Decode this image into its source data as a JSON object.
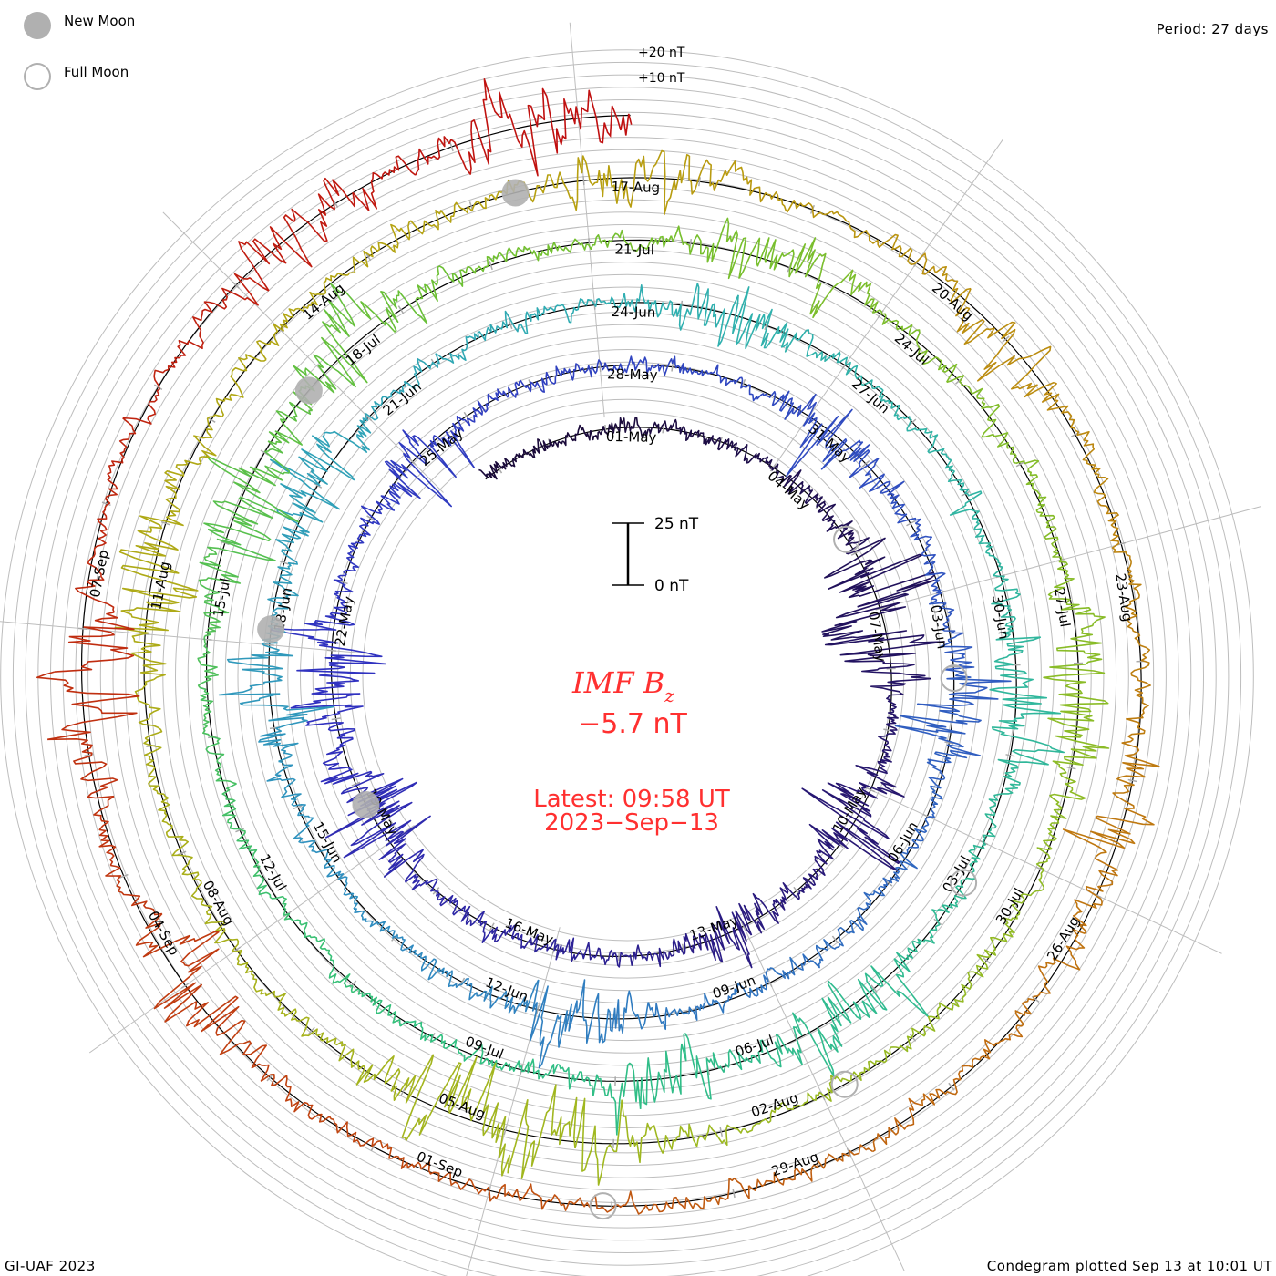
{
  "legend": {
    "new_moon": "New Moon",
    "full_moon": "Full Moon",
    "new_moon_color": "#b0b0b0",
    "full_moon_color": "#b0b0b0"
  },
  "period_label": "Period: 27 days",
  "footer_left": "GI-UAF 2023",
  "footer_right": "Condegram plotted Sep 13 at 10:01 UT",
  "center": {
    "title_main": "IMF B",
    "title_sub": "z",
    "value": "−5.7 nT",
    "latest": "Latest: 09:58 UT",
    "date": "2023−Sep−13"
  },
  "scale_bar": {
    "top_label": "25 nT",
    "bottom_label": "0 nT",
    "value_nT": 25
  },
  "outer_scale": {
    "plus10": "+10 nT",
    "plus20": "+20 nT"
  },
  "chart_data": {
    "type": "line",
    "subtype": "polar condegram (spiral)",
    "title": "IMF Bz",
    "units": "nT",
    "period_days": 27,
    "start_day_offset": -2.3,
    "end_day_offset": 135.415,
    "reference_date": "2023-05-01",
    "latest_value_nT": -5.7,
    "base_noise_nT": 2.4,
    "date_label_step_days": 3,
    "date_labels": [
      "01-May",
      "04-May",
      "07-May",
      "10-May",
      "13-May",
      "16-May",
      "19-May",
      "22-May",
      "25-May",
      "28-May",
      "31-May",
      "03-Jun",
      "06-Jun",
      "09-Jun",
      "12-Jun",
      "15-Jun",
      "18-Jun",
      "21-Jun",
      "24-Jun",
      "27-Jun",
      "30-Jun",
      "03-Jul",
      "06-Jul",
      "09-Jul",
      "12-Jul",
      "15-Jul",
      "18-Jul",
      "21-Jul",
      "24-Jul",
      "27-Jul",
      "30-Jul",
      "02-Aug",
      "05-Aug",
      "08-Aug",
      "11-Aug",
      "14-Aug",
      "17-Aug",
      "20-Aug",
      "23-Aug",
      "26-Aug",
      "29-Aug",
      "01-Sep",
      "04-Sep",
      "07-Sep"
    ],
    "disturbances": [
      {
        "day": 5.8,
        "amp": 14
      },
      {
        "day": 6.6,
        "amp": 8
      },
      {
        "day": 9.5,
        "amp": 12
      },
      {
        "day": 12.2,
        "amp": 8
      },
      {
        "day": 18.5,
        "amp": 12
      },
      {
        "day": 20.8,
        "amp": 10
      },
      {
        "day": 24,
        "amp": 6
      },
      {
        "day": 30.5,
        "amp": 7
      },
      {
        "day": 34.5,
        "amp": 8
      },
      {
        "day": 41.5,
        "amp": 10
      },
      {
        "day": 47.5,
        "amp": 9
      },
      {
        "day": 50,
        "amp": 7
      },
      {
        "day": 55.5,
        "amp": 7
      },
      {
        "day": 61.5,
        "amp": 7
      },
      {
        "day": 65.5,
        "amp": 8
      },
      {
        "day": 67.5,
        "amp": 8
      },
      {
        "day": 76.3,
        "amp": 10
      },
      {
        "day": 78.5,
        "amp": 8
      },
      {
        "day": 83,
        "amp": 7
      },
      {
        "day": 88.3,
        "amp": 9
      },
      {
        "day": 95.5,
        "amp": 10
      },
      {
        "day": 96.5,
        "amp": 9
      },
      {
        "day": 102.5,
        "amp": 10
      },
      {
        "day": 108.5,
        "amp": 7
      },
      {
        "day": 112,
        "amp": 6
      },
      {
        "day": 116.5,
        "amp": 6
      },
      {
        "day": 126,
        "amp": 8
      },
      {
        "day": 128.5,
        "amp": 9
      },
      {
        "day": 132.5,
        "amp": 8
      },
      {
        "day": 134.8,
        "amp": 10
      }
    ],
    "new_moons_day_offset": [
      18.66,
      48.19,
      77.77,
      107.4
    ],
    "full_moons_day_offset": [
      4.73,
      34.15,
      63.49,
      92.77,
      122.07
    ],
    "color_stops": [
      {
        "day": 0,
        "color": "#1a0a3a"
      },
      {
        "day": 12,
        "color": "#2a1a80"
      },
      {
        "day": 20,
        "color": "#3030c0"
      },
      {
        "day": 32,
        "color": "#3050c0"
      },
      {
        "day": 45,
        "color": "#3090c0"
      },
      {
        "day": 55,
        "color": "#30b0b0"
      },
      {
        "day": 70,
        "color": "#30c080"
      },
      {
        "day": 80,
        "color": "#70c030"
      },
      {
        "day": 95,
        "color": "#a0b820"
      },
      {
        "day": 108,
        "color": "#b8a010"
      },
      {
        "day": 118,
        "color": "#c07010"
      },
      {
        "day": 125,
        "color": "#c04010"
      },
      {
        "day": 135,
        "color": "#c01010"
      }
    ]
  }
}
